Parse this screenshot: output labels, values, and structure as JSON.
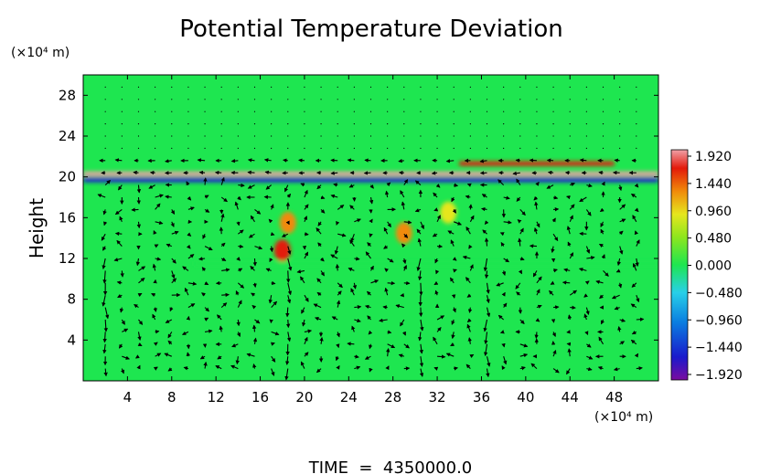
{
  "chart_data": {
    "type": "heatmap",
    "title": "Potential Temperature Deviation",
    "ylabel": "Height",
    "y_unit": "(×10⁴ m)",
    "x_unit": "(×10⁴ m)",
    "xlim": [
      0,
      52
    ],
    "ylim": [
      0,
      30
    ],
    "x_ticks": [
      "4",
      "8",
      "12",
      "16",
      "20",
      "24",
      "28",
      "32",
      "36",
      "40",
      "44",
      "48"
    ],
    "y_ticks": [
      "4",
      "8",
      "12",
      "16",
      "20",
      "24",
      "28"
    ],
    "colorbar": {
      "labels": [
        "1.920",
        "1.440",
        "0.960",
        "0.480",
        "0.000",
        "-0.480",
        "-0.960",
        "-1.440",
        "-1.920"
      ],
      "range": [
        -1.92,
        1.92
      ]
    },
    "background_value": 0.0,
    "features": [
      {
        "kind": "band",
        "y": 20.3,
        "x": [
          0,
          52
        ],
        "value": 1.9
      },
      {
        "kind": "band",
        "y": 19.7,
        "x": [
          0,
          52
        ],
        "value": -1.5
      },
      {
        "kind": "band",
        "y": 21.3,
        "x": [
          34,
          48
        ],
        "value": 1.4
      },
      {
        "kind": "band",
        "y": 11.5,
        "x": [
          10,
          52
        ],
        "value": -0.3
      },
      {
        "kind": "patch",
        "x": 18,
        "y": 12.8,
        "value": 1.6
      },
      {
        "kind": "patch",
        "x": 18.5,
        "y": 15.5,
        "value": 0.9
      },
      {
        "kind": "patch",
        "x": 29,
        "y": 14.5,
        "value": 0.9
      },
      {
        "kind": "patch",
        "x": 33,
        "y": 16.5,
        "value": 0.8
      }
    ],
    "vector_field": "wind vectors",
    "annotation": "TIME  =  4350000.0"
  },
  "palette": [
    "#7a0ca0",
    "#1a1acc",
    "#0a7de0",
    "#28d0e8",
    "#1ee650",
    "#8de61e",
    "#e6e61e",
    "#f08a0a",
    "#e31a0a",
    "#f0a0a8"
  ]
}
